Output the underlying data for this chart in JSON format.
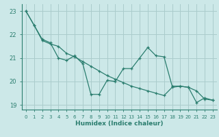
{
  "xlabel": "Humidex (Indice chaleur)",
  "ylabel": "",
  "background_color": "#cce8e8",
  "grid_color": "#aacccc",
  "line_color": "#2a7d6e",
  "xlim": [
    -0.5,
    23.5
  ],
  "ylim": [
    18.8,
    23.3
  ],
  "yticks": [
    19,
    20,
    21,
    22,
    23
  ],
  "xticks": [
    0,
    1,
    2,
    3,
    4,
    5,
    6,
    7,
    8,
    9,
    10,
    11,
    12,
    13,
    14,
    15,
    16,
    17,
    18,
    19,
    20,
    21,
    22,
    23
  ],
  "series1_x": [
    0,
    1,
    2,
    3,
    4,
    5,
    6,
    7,
    8,
    9,
    10,
    11,
    12,
    13,
    14,
    15,
    16,
    17,
    18,
    19,
    20,
    21,
    22,
    23
  ],
  "series1_y": [
    23.0,
    22.4,
    21.8,
    21.65,
    21.0,
    20.9,
    21.1,
    20.75,
    19.45,
    19.45,
    20.05,
    20.0,
    20.55,
    20.55,
    21.0,
    21.45,
    21.1,
    21.05,
    19.8,
    19.8,
    19.75,
    19.1,
    19.3,
    19.2
  ],
  "series2_x": [
    0,
    1,
    2,
    3,
    4,
    5,
    6,
    7,
    8,
    9,
    10,
    11,
    12,
    13,
    14,
    15,
    16,
    17,
    18,
    19,
    20,
    21,
    22,
    23
  ],
  "series2_y": [
    23.0,
    22.4,
    21.75,
    21.6,
    21.5,
    21.2,
    21.05,
    20.85,
    20.65,
    20.45,
    20.25,
    20.1,
    19.95,
    19.8,
    19.7,
    19.6,
    19.5,
    19.4,
    19.75,
    19.8,
    19.75,
    19.6,
    19.25,
    19.2
  ]
}
